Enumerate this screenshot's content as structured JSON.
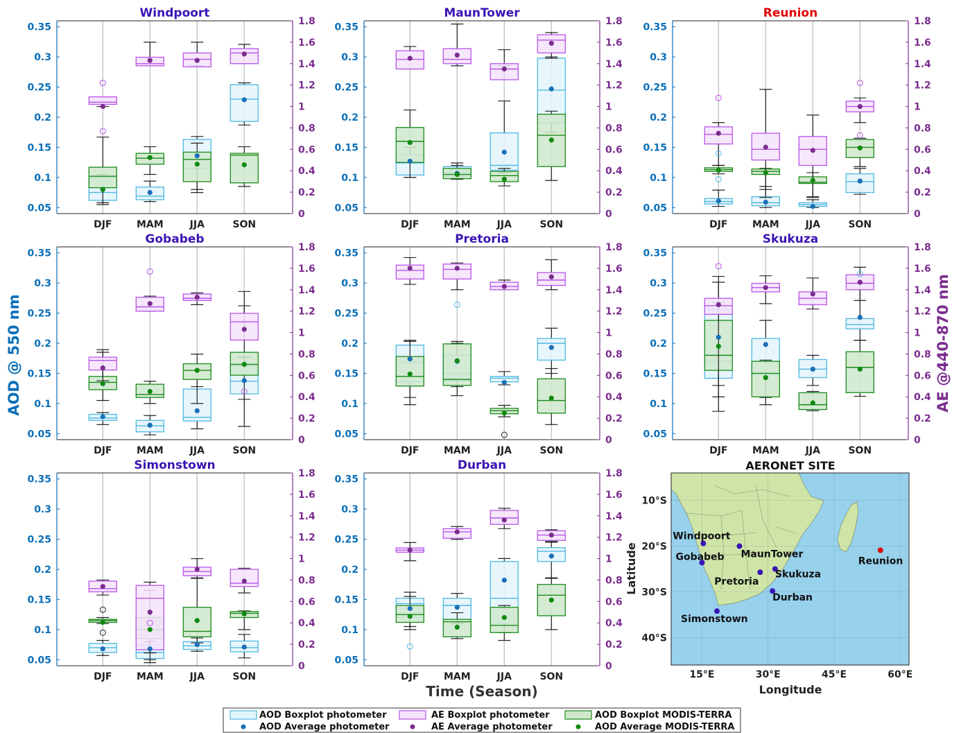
{
  "figure": {
    "ylabel_left": "AOD @ 550 nm",
    "ylabel_right": "AE @440-870 nm",
    "xlabel": "Time (Season)"
  },
  "colors": {
    "aod_photo": "#4fb8e0",
    "aod_photo_fill": "#e3f5fc",
    "ae": "#b855e8",
    "ae_fill": "#f5e3fc",
    "modis": "#1a8a1a",
    "modis_fill": "#cfe8cc",
    "aod_avg": "#1a6fb8",
    "ae_avg": "#7b2d8e",
    "modis_avg": "#0f8a0f",
    "left_axis": "#0b6fb8",
    "right_axis": "#7b2d8e",
    "title_blue": "#3a14b4",
    "title_red": "#e00000"
  },
  "axes": {
    "aod_ticks": [
      "0.05",
      "0.1",
      "0.15",
      "0.2",
      "0.25",
      "0.3",
      "0.35"
    ],
    "ae_ticks": [
      "0",
      "0.2",
      "0.4",
      "0.6",
      "0.8",
      "1",
      "1.2",
      "1.4",
      "1.6",
      "1.8"
    ],
    "seasons": [
      "DJF",
      "MAM",
      "JJA",
      "SON"
    ]
  },
  "legend": {
    "aod_box": "AOD Boxplot photometer",
    "ae_box": "AE Boxplot photometer",
    "modis_box": "AOD Boxplot MODIS-TERRA",
    "aod_avg": "AOD Average photometer",
    "ae_avg": "AE Average photometer",
    "modis_avg": "AOD Average MODIS-TERRA"
  },
  "map": {
    "title": "AERONET SITE",
    "xlabel": "Longitude",
    "ylabel": "Latitude",
    "lon_ticks": [
      "15°E",
      "30°E",
      "45°E",
      "60°E"
    ],
    "lat_ticks": [
      "10°S",
      "20°S",
      "30°S",
      "40°S"
    ],
    "sites": [
      {
        "name": "Windpoort",
        "lon": 15.3,
        "lat": -19.4
      },
      {
        "name": "MaunTower",
        "lon": 23.5,
        "lat": -20.0
      },
      {
        "name": "Gobabeb",
        "lon": 15.0,
        "lat": -23.6
      },
      {
        "name": "Pretoria",
        "lon": 28.2,
        "lat": -25.7
      },
      {
        "name": "Skukuza",
        "lon": 31.6,
        "lat": -25.0
      },
      {
        "name": "Durban",
        "lon": 31.0,
        "lat": -29.8
      },
      {
        "name": "Simonstown",
        "lon": 18.4,
        "lat": -34.2
      },
      {
        "name": "Reunion",
        "lon": 55.5,
        "lat": -20.9
      }
    ]
  },
  "chart_data": [
    {
      "type": "boxplot",
      "title": "Windpoort",
      "title_color": "red_no",
      "aod_photo": [
        [
          0.055,
          0.062,
          0.075,
          0.1,
          0.105,
          0.08
        ],
        [
          0.06,
          0.063,
          0.069,
          0.084,
          0.094,
          0.075
        ],
        [
          0.08,
          0.115,
          0.13,
          0.163,
          0.168,
          0.136
        ],
        [
          0.187,
          0.193,
          0.23,
          0.254,
          0.257,
          0.229
        ]
      ],
      "ae_photo": [
        [
          1.0,
          1.02,
          1.04,
          1.09,
          1.09,
          1.0
        ],
        [
          1.4,
          1.38,
          1.4,
          1.46,
          1.6,
          1.43
        ],
        [
          1.38,
          1.37,
          1.44,
          1.5,
          1.6,
          1.43
        ],
        [
          1.4,
          1.4,
          1.5,
          1.54,
          1.58,
          1.49
        ]
      ],
      "modis": [
        [
          0.058,
          0.083,
          0.102,
          0.117,
          0.167,
          0.08
        ],
        [
          0.105,
          0.122,
          0.132,
          0.14,
          0.151,
          0.133
        ],
        [
          0.075,
          0.093,
          0.13,
          0.142,
          0.157,
          0.122
        ],
        [
          0.085,
          0.091,
          0.137,
          0.14,
          0.151,
          0.121
        ]
      ],
      "outliers_ae": [
        [
          1.22,
          0.77
        ],
        [],
        [],
        []
      ],
      "outliers_aod": [
        [],
        [],
        [],
        []
      ],
      "outliers_modis": [
        [],
        [],
        [],
        []
      ]
    },
    {
      "type": "boxplot",
      "title": "MaunTower",
      "title_color": "blue",
      "aod_photo": [
        [
          0.1,
          0.104,
          0.124,
          0.138,
          0.15,
          0.127
        ],
        [
          0.099,
          0.102,
          0.108,
          0.118,
          0.12,
          0.107
        ],
        [
          0.108,
          0.112,
          0.12,
          0.174,
          0.227,
          0.142
        ],
        [
          0.175,
          0.19,
          0.245,
          0.298,
          0.3,
          0.247
        ]
      ],
      "ae_photo": [
        [
          1.35,
          1.35,
          1.44,
          1.52,
          1.56,
          1.45
        ],
        [
          1.38,
          1.4,
          1.44,
          1.54,
          1.77,
          1.48
        ],
        [
          1.38,
          1.25,
          1.35,
          1.4,
          1.53,
          1.35
        ],
        [
          1.45,
          1.5,
          1.62,
          1.67,
          1.69,
          1.59
        ]
      ],
      "modis": [
        [
          0.1,
          0.125,
          0.16,
          0.183,
          0.212,
          0.158
        ],
        [
          0.097,
          0.098,
          0.105,
          0.115,
          0.124,
          0.105
        ],
        [
          0.086,
          0.093,
          0.103,
          0.11,
          0.115,
          0.097
        ],
        [
          0.095,
          0.118,
          0.17,
          0.205,
          0.21,
          0.162
        ]
      ],
      "outliers_ae": [
        [],
        [],
        [],
        []
      ],
      "outliers_aod": [
        [],
        [],
        [],
        []
      ],
      "outliers_modis": [
        [],
        [],
        [],
        []
      ]
    },
    {
      "type": "boxplot",
      "title": "Reunion",
      "title_color": "red",
      "aod_photo": [
        [
          0.052,
          0.056,
          0.06,
          0.065,
          0.079,
          0.061
        ],
        [
          0.05,
          0.053,
          0.058,
          0.068,
          0.085,
          0.059
        ],
        [
          0.05,
          0.052,
          0.055,
          0.058,
          0.063,
          0.052
        ],
        [
          0.072,
          0.075,
          0.093,
          0.106,
          0.115,
          0.094
        ]
      ],
      "ae_photo": [
        [
          0.45,
          0.65,
          0.74,
          0.81,
          0.85,
          0.75
        ],
        [
          0.15,
          0.5,
          0.6,
          0.75,
          1.16,
          0.62
        ],
        [
          0.15,
          0.45,
          0.6,
          0.72,
          0.92,
          0.59
        ],
        [
          0.85,
          0.95,
          1.0,
          1.05,
          1.08,
          1.0
        ]
      ],
      "modis": [
        [
          0.106,
          0.11,
          0.113,
          0.116,
          0.12,
          0.112
        ],
        [
          0.08,
          0.105,
          0.11,
          0.114,
          0.115,
          0.108
        ],
        [
          0.068,
          0.09,
          0.092,
          0.101,
          0.108,
          0.095
        ],
        [
          0.118,
          0.133,
          0.15,
          0.163,
          0.165,
          0.149
        ]
      ],
      "outliers_ae": [
        [
          1.08
        ],
        [],
        [],
        [
          1.22,
          0.73
        ]
      ],
      "outliers_aod": [
        [
          0.14,
          0.097
        ],
        [],
        [],
        []
      ],
      "outliers_modis": [
        [],
        [],
        [],
        []
      ]
    },
    {
      "type": "boxplot",
      "title": "Gobabeb",
      "title_color": "blue",
      "aod_photo": [
        [
          0.065,
          0.072,
          0.076,
          0.082,
          0.085,
          0.078
        ],
        [
          0.048,
          0.053,
          0.063,
          0.072,
          0.08,
          0.064
        ],
        [
          0.058,
          0.071,
          0.077,
          0.124,
          0.128,
          0.088
        ],
        [
          0.107,
          0.116,
          0.137,
          0.163,
          0.177,
          0.138
        ]
      ],
      "ae_photo": [
        [
          0.55,
          0.65,
          0.74,
          0.77,
          0.84,
          0.67
        ],
        [
          1.2,
          1.2,
          1.24,
          1.33,
          1.34,
          1.27
        ],
        [
          1.26,
          1.3,
          1.32,
          1.36,
          1.37,
          1.33
        ],
        [
          1.1,
          0.93,
          1.1,
          1.18,
          1.25,
          1.03
        ]
      ],
      "modis": [
        [
          0.105,
          0.123,
          0.135,
          0.145,
          0.185,
          0.133
        ],
        [
          0.1,
          0.11,
          0.115,
          0.132,
          0.137,
          0.12
        ],
        [
          0.1,
          0.14,
          0.155,
          0.166,
          0.182,
          0.155
        ],
        [
          0.062,
          0.147,
          0.165,
          0.185,
          0.286,
          0.165
        ]
      ],
      "outliers_ae": [
        [],
        [
          1.57
        ],
        [],
        [
          0.45
        ]
      ],
      "outliers_aod": [
        [],
        [],
        [],
        []
      ],
      "outliers_modis": [
        [],
        [],
        [],
        []
      ]
    },
    {
      "type": "boxplot",
      "title": "Pretoria",
      "title_color": "blue",
      "aod_photo": [
        [
          0.11,
          0.136,
          0.168,
          0.197,
          0.203,
          0.174
        ],
        [
          0.128,
          0.138,
          0.15,
          0.18,
          0.2,
          0.17
        ],
        [
          0.131,
          0.136,
          0.142,
          0.145,
          0.153,
          0.135
        ],
        [
          0.15,
          0.172,
          0.2,
          0.208,
          0.225,
          0.193
        ]
      ],
      "ae_photo": [
        [
          1.45,
          1.5,
          1.58,
          1.63,
          1.7,
          1.6
        ],
        [
          1.4,
          1.5,
          1.59,
          1.64,
          1.65,
          1.6
        ],
        [
          1.4,
          1.4,
          1.43,
          1.47,
          1.49,
          1.43
        ],
        [
          1.4,
          1.44,
          1.49,
          1.56,
          1.68,
          1.52
        ]
      ],
      "modis": [
        [
          0.098,
          0.129,
          0.145,
          0.178,
          0.205,
          0.149
        ],
        [
          0.113,
          0.13,
          0.14,
          0.199,
          0.203,
          0.171
        ],
        [
          0.078,
          0.083,
          0.088,
          0.092,
          0.097,
          0.084
        ],
        [
          0.065,
          0.084,
          0.105,
          0.141,
          0.158,
          0.109
        ]
      ],
      "outliers_ae": [
        [],
        [],
        [],
        []
      ],
      "outliers_aod": [
        [],
        [
          0.264
        ],
        [],
        []
      ],
      "outliers_modis": [
        [],
        [],
        [
          0.048
        ],
        []
      ]
    },
    {
      "type": "boxplot",
      "title": "Skukuza",
      "title_color": "blue",
      "aod_photo": [
        [
          0.13,
          0.142,
          0.17,
          0.256,
          0.268,
          0.21
        ],
        [
          0.11,
          0.148,
          0.17,
          0.208,
          0.238,
          0.198
        ],
        [
          0.13,
          0.143,
          0.157,
          0.173,
          0.18,
          0.157
        ],
        [
          0.205,
          0.224,
          0.231,
          0.241,
          0.3,
          0.243
        ]
      ],
      "ae_photo": [
        [
          0.4,
          1.17,
          1.25,
          1.32,
          1.47,
          1.26
        ],
        [
          1.27,
          1.38,
          1.42,
          1.46,
          1.53,
          1.42
        ],
        [
          1.22,
          1.26,
          1.32,
          1.38,
          1.51,
          1.36
        ],
        [
          1.3,
          1.4,
          1.46,
          1.54,
          1.61,
          1.47
        ]
      ],
      "modis": [
        [
          0.087,
          0.155,
          0.18,
          0.238,
          0.311,
          0.195
        ],
        [
          0.098,
          0.111,
          0.15,
          0.17,
          0.172,
          0.143
        ],
        [
          0.088,
          0.09,
          0.098,
          0.118,
          0.12,
          0.101
        ],
        [
          0.112,
          0.118,
          0.16,
          0.186,
          0.205,
          0.157
        ]
      ],
      "outliers_ae": [
        [
          1.62
        ],
        [],
        [],
        []
      ],
      "outliers_aod": [
        [],
        [],
        [],
        [
          0.315
        ]
      ],
      "outliers_modis": [
        [],
        [],
        [],
        []
      ]
    },
    {
      "type": "boxplot",
      "title": "Simonstown",
      "title_color": "blue",
      "aod_photo": [
        [
          0.057,
          0.062,
          0.07,
          0.077,
          0.082,
          0.068
        ],
        [
          0.045,
          0.052,
          0.062,
          0.075,
          0.08,
          0.068
        ],
        [
          0.064,
          0.067,
          0.073,
          0.08,
          0.086,
          0.075
        ],
        [
          0.053,
          0.063,
          0.07,
          0.081,
          0.092,
          0.071
        ]
      ],
      "ae_photo": [
        [
          0.66,
          0.69,
          0.72,
          0.79,
          0.8,
          0.74
        ],
        [
          0.12,
          0.15,
          0.63,
          0.75,
          0.78,
          0.5
        ],
        [
          0.82,
          0.84,
          0.88,
          0.92,
          1.0,
          0.9
        ],
        [
          0.68,
          0.74,
          0.77,
          0.9,
          0.91,
          0.79
        ]
      ],
      "modis": [
        [
          0.11,
          0.112,
          0.115,
          0.117,
          0.12,
          0.112
        ],
        [
          0.05,
          0.085,
          0.1,
          0.12,
          0.165,
          0.1
        ],
        [
          0.078,
          0.088,
          0.097,
          0.137,
          0.185,
          0.115
        ],
        [
          0.1,
          0.12,
          0.127,
          0.13,
          0.131,
          0.126
        ]
      ],
      "outliers_ae": [
        [],
        [
          0.4
        ],
        [],
        []
      ],
      "outliers_aod": [
        [],
        [],
        [],
        []
      ],
      "outliers_modis": [
        [
          0.133,
          0.095
        ],
        [],
        [],
        []
      ]
    },
    {
      "type": "boxplot",
      "title": "Durban",
      "title_color": "blue",
      "aod_photo": [
        [
          0.1,
          0.12,
          0.143,
          0.152,
          0.162,
          0.135
        ],
        [
          0.11,
          0.117,
          0.14,
          0.152,
          0.16,
          0.137
        ],
        [
          0.095,
          0.11,
          0.152,
          0.213,
          0.218,
          0.182
        ],
        [
          0.186,
          0.213,
          0.23,
          0.236,
          0.245,
          0.222
        ]
      ],
      "ae_photo": [
        [
          0.98,
          1.06,
          1.08,
          1.1,
          1.15,
          1.08
        ],
        [
          1.18,
          1.19,
          1.25,
          1.28,
          1.3,
          1.25
        ],
        [
          1.28,
          1.32,
          1.38,
          1.45,
          1.47,
          1.36
        ],
        [
          1.16,
          1.17,
          1.22,
          1.26,
          1.27,
          1.22
        ]
      ],
      "modis": [
        [
          0.105,
          0.112,
          0.125,
          0.14,
          0.155,
          0.122
        ],
        [
          0.085,
          0.088,
          0.113,
          0.117,
          0.128,
          0.104
        ],
        [
          0.082,
          0.095,
          0.107,
          0.137,
          0.14,
          0.12
        ],
        [
          0.1,
          0.123,
          0.157,
          0.175,
          0.185,
          0.149
        ]
      ],
      "outliers_ae": [
        [],
        [],
        [],
        []
      ],
      "outliers_aod": [
        [
          0.072
        ],
        [],
        [],
        []
      ],
      "outliers_modis": [
        [],
        [],
        [],
        []
      ]
    }
  ]
}
